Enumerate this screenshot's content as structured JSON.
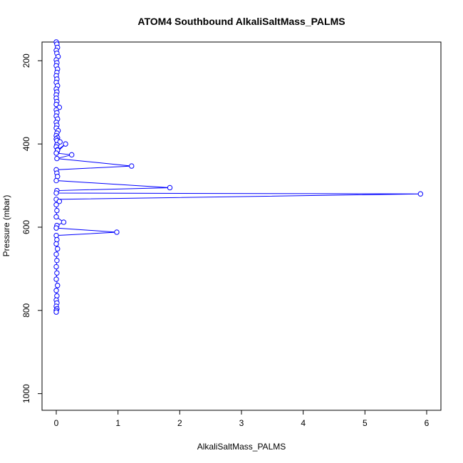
{
  "chart_data": {
    "type": "line",
    "title": "ATOM4 Southbound AlkaliSaltMass_PALMS",
    "xlabel": "AlkaliSaltMass_PALMS",
    "ylabel": "Pressure (mbar)",
    "xlim": [
      0,
      6
    ],
    "ylim": [
      1040,
      155
    ],
    "y_reversed": true,
    "x_ticks": [
      0,
      1,
      2,
      3,
      4,
      5,
      6
    ],
    "y_ticks": [
      200,
      400,
      600,
      800,
      1000
    ],
    "grid": false,
    "legend": "none",
    "marker": "open-circle",
    "color": "#0000ff",
    "series": [
      {
        "x": [
          0.0,
          0.01,
          0.02,
          0.0,
          0.01,
          0.03,
          0.0,
          0.01,
          0.0,
          0.02,
          0.01,
          0.0,
          0.01,
          0.0,
          0.02,
          0.0,
          0.01,
          0.0,
          0.0,
          0.01,
          0.0,
          0.05,
          0.0,
          0.01,
          0.0,
          0.02,
          0.0,
          0.01,
          0.0,
          0.03,
          0.01,
          0.0,
          0.02,
          0.0,
          0.01,
          0.06,
          0.01,
          0.0,
          0.02,
          0.01,
          0.15,
          0.02,
          0.0,
          0.25,
          0.01,
          1.22,
          0.0,
          0.01,
          0.02,
          0.0,
          1.84,
          0.01,
          0.0,
          5.9,
          0.0,
          0.05,
          0.0,
          0.01,
          0.0,
          0.12,
          0.01,
          0.0,
          0.98,
          0.0,
          0.01,
          0.0,
          0.02,
          0.0,
          0.01,
          0.0,
          0.01,
          0.0,
          0.02,
          0.0,
          0.01,
          0.0,
          0.01,
          0.0,
          0.01,
          0.0,
          0.0
        ],
        "y": [
          155,
          160,
          168,
          175,
          182,
          190,
          198,
          205,
          212,
          220,
          228,
          236,
          244,
          252,
          260,
          268,
          275,
          282,
          290,
          298,
          305,
          312,
          318,
          325,
          333,
          340,
          348,
          355,
          362,
          368,
          374,
          380,
          385,
          388,
          392,
          395,
          402,
          407,
          414,
          420,
          400,
          415,
          422,
          426,
          435,
          453,
          462,
          470,
          478,
          488,
          505,
          512,
          518,
          520,
          533,
          538,
          546,
          560,
          575,
          588,
          596,
          602,
          612,
          620,
          630,
          640,
          652,
          665,
          680,
          695,
          710,
          725,
          740,
          752,
          765,
          775,
          782,
          790,
          796,
          800,
          804
        ]
      }
    ]
  }
}
